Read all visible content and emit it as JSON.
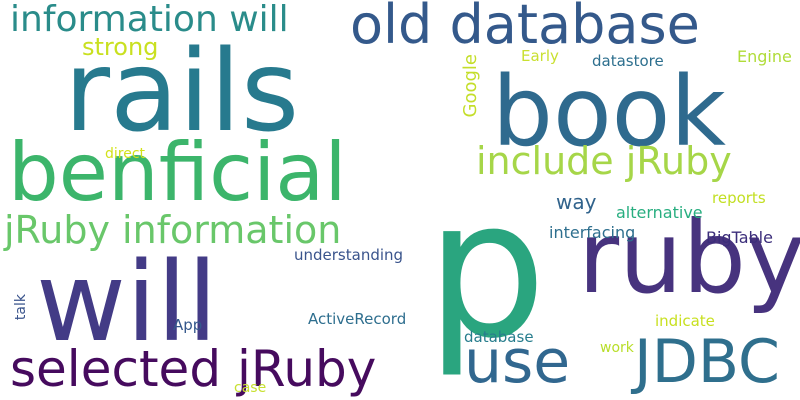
{
  "word_cloud": {
    "words": {
      "p": "p",
      "rails": "rails",
      "book": "book",
      "will_big": "will",
      "benficial": "benficial",
      "ruby": "ruby",
      "old_database": "old database",
      "information_will": "information will",
      "include_jruby": "include jRuby",
      "jruby_information": "jRuby information",
      "selected_jruby": "selected jRuby",
      "use": "use",
      "jdbc": "JDBC",
      "strong": "strong",
      "google": "Google",
      "early": "Early",
      "datastore": "datastore",
      "engine": "Engine",
      "direct": "direct",
      "way": "way",
      "reports": "reports",
      "alternative": "alternative",
      "interfacing": "interfacing",
      "bigtable": "BigTable",
      "understanding": "understanding",
      "talk": "talk",
      "app": "App",
      "activerecord": "ActiveRecord",
      "indicate": "indicate",
      "database": "database",
      "work": "work",
      "case": "case"
    }
  }
}
